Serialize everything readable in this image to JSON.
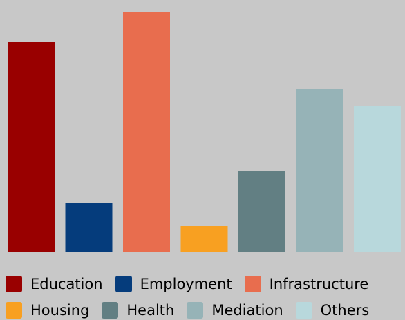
{
  "chart_data": {
    "type": "bar",
    "categories": [
      "Education",
      "Employment",
      "Infrastructure",
      "Housing",
      "Health",
      "Mediation",
      "Others"
    ],
    "values": [
      304,
      72,
      348,
      38,
      117,
      236,
      212
    ],
    "colors": [
      "#990000",
      "#053c7c",
      "#e86d4e",
      "#f8a021",
      "#627f83",
      "#96b3b7",
      "#b8d8dc"
    ],
    "ylim": [
      0,
      348
    ],
    "grid": false,
    "legend_position": "bottom",
    "legend": [
      {
        "label": "Education",
        "color": "#990000"
      },
      {
        "label": "Employment",
        "color": "#053c7c"
      },
      {
        "label": "Infrastructure",
        "color": "#e86d4e"
      },
      {
        "label": "Housing",
        "color": "#f8a021"
      },
      {
        "label": "Health",
        "color": "#627f83"
      },
      {
        "label": "Mediation",
        "color": "#96b3b7"
      },
      {
        "label": "Others",
        "color": "#b8d8dc"
      }
    ]
  }
}
